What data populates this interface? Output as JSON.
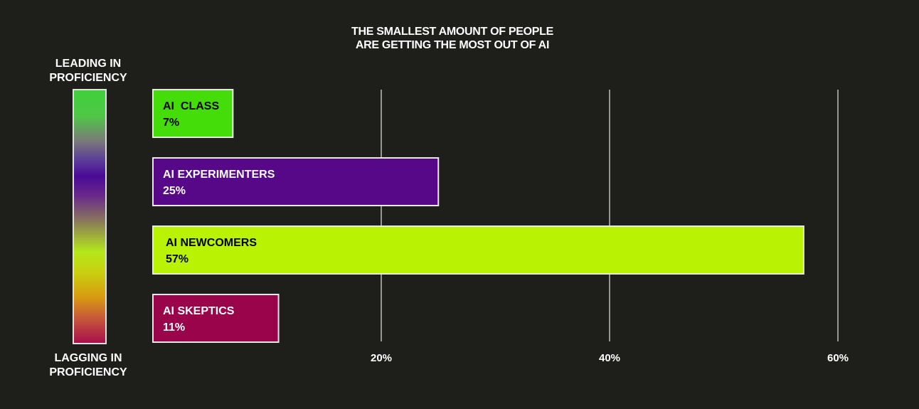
{
  "colors": {
    "background": "#1e1e1b",
    "grid": "#e6e6e6",
    "bar_border": "#e8e8e8",
    "class_green": "#44dd09",
    "experimenters_purple": "#560889",
    "newcomers_lime": "#b9f202",
    "skeptics_crimson": "#99044a"
  },
  "scale": {
    "top_label_line1": "LEADING IN",
    "top_label_line2": "PROFICIENCY",
    "bottom_label_line1": "LAGGING IN",
    "bottom_label_line2": "PROFICIENCY"
  },
  "chart_data": {
    "type": "bar",
    "orientation": "horizontal",
    "title": "THE SMALLEST AMOUNT OF PEOPLE ARE GETTING THE MOST OUT OF AI",
    "title_line1": "THE SMALLEST AMOUNT OF PEOPLE",
    "title_line2": "ARE GETTING THE MOST OUT OF AI",
    "xlabel": "",
    "ylabel": "",
    "xlim": [
      0,
      60
    ],
    "x_ticks": [
      20,
      40,
      60
    ],
    "x_tick_labels": [
      "20%",
      "40%",
      "60%"
    ],
    "grid": "vertical",
    "legend": "none",
    "categories": [
      "AI  CLASS",
      "AI EXPERIMENTERS",
      "AI NEWCOMERS",
      "AI SKEPTICS"
    ],
    "values": [
      7,
      25,
      57,
      11
    ],
    "value_labels": [
      "7%",
      "25%",
      "57%",
      "11%"
    ],
    "bar_colors": [
      "#44dd09",
      "#560889",
      "#b9f202",
      "#99044a"
    ],
    "label_colors": [
      "#000000",
      "#ffffff",
      "#000000",
      "#ffffff"
    ]
  }
}
